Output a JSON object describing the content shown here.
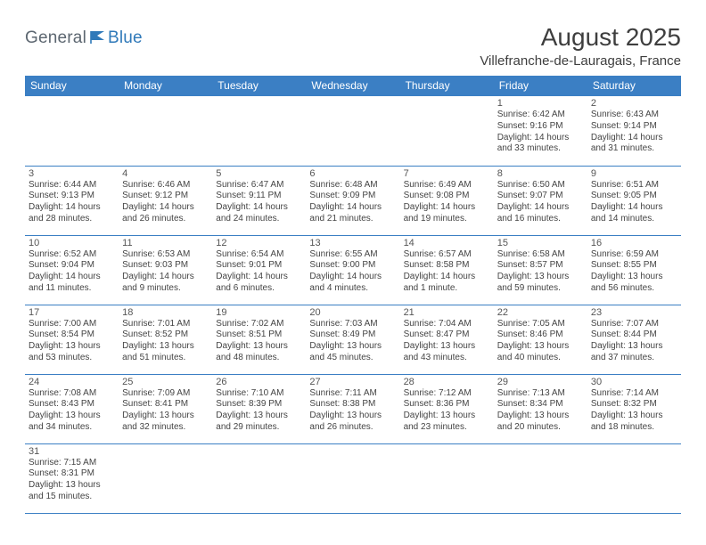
{
  "logo": {
    "general": "General",
    "blue": "Blue"
  },
  "title": {
    "month": "August 2025",
    "location": "Villefranche-de-Lauragais, France"
  },
  "colors": {
    "header_bg": "#3b7fc4",
    "header_fg": "#ffffff",
    "rule": "#3b7fc4",
    "text": "#444444",
    "title": "#3e3e3e",
    "logo_gray": "#5c6670",
    "logo_blue": "#2f79b9"
  },
  "weekdays": [
    "Sunday",
    "Monday",
    "Tuesday",
    "Wednesday",
    "Thursday",
    "Friday",
    "Saturday"
  ],
  "layout": {
    "first_weekday_index": 5,
    "days_in_month": 31,
    "rows": 6
  },
  "days": {
    "1": {
      "sunrise": "6:42 AM",
      "sunset": "9:16 PM",
      "daylight": "14 hours and 33 minutes."
    },
    "2": {
      "sunrise": "6:43 AM",
      "sunset": "9:14 PM",
      "daylight": "14 hours and 31 minutes."
    },
    "3": {
      "sunrise": "6:44 AM",
      "sunset": "9:13 PM",
      "daylight": "14 hours and 28 minutes."
    },
    "4": {
      "sunrise": "6:46 AM",
      "sunset": "9:12 PM",
      "daylight": "14 hours and 26 minutes."
    },
    "5": {
      "sunrise": "6:47 AM",
      "sunset": "9:11 PM",
      "daylight": "14 hours and 24 minutes."
    },
    "6": {
      "sunrise": "6:48 AM",
      "sunset": "9:09 PM",
      "daylight": "14 hours and 21 minutes."
    },
    "7": {
      "sunrise": "6:49 AM",
      "sunset": "9:08 PM",
      "daylight": "14 hours and 19 minutes."
    },
    "8": {
      "sunrise": "6:50 AM",
      "sunset": "9:07 PM",
      "daylight": "14 hours and 16 minutes."
    },
    "9": {
      "sunrise": "6:51 AM",
      "sunset": "9:05 PM",
      "daylight": "14 hours and 14 minutes."
    },
    "10": {
      "sunrise": "6:52 AM",
      "sunset": "9:04 PM",
      "daylight": "14 hours and 11 minutes."
    },
    "11": {
      "sunrise": "6:53 AM",
      "sunset": "9:03 PM",
      "daylight": "14 hours and 9 minutes."
    },
    "12": {
      "sunrise": "6:54 AM",
      "sunset": "9:01 PM",
      "daylight": "14 hours and 6 minutes."
    },
    "13": {
      "sunrise": "6:55 AM",
      "sunset": "9:00 PM",
      "daylight": "14 hours and 4 minutes."
    },
    "14": {
      "sunrise": "6:57 AM",
      "sunset": "8:58 PM",
      "daylight": "14 hours and 1 minute."
    },
    "15": {
      "sunrise": "6:58 AM",
      "sunset": "8:57 PM",
      "daylight": "13 hours and 59 minutes."
    },
    "16": {
      "sunrise": "6:59 AM",
      "sunset": "8:55 PM",
      "daylight": "13 hours and 56 minutes."
    },
    "17": {
      "sunrise": "7:00 AM",
      "sunset": "8:54 PM",
      "daylight": "13 hours and 53 minutes."
    },
    "18": {
      "sunrise": "7:01 AM",
      "sunset": "8:52 PM",
      "daylight": "13 hours and 51 minutes."
    },
    "19": {
      "sunrise": "7:02 AM",
      "sunset": "8:51 PM",
      "daylight": "13 hours and 48 minutes."
    },
    "20": {
      "sunrise": "7:03 AM",
      "sunset": "8:49 PM",
      "daylight": "13 hours and 45 minutes."
    },
    "21": {
      "sunrise": "7:04 AM",
      "sunset": "8:47 PM",
      "daylight": "13 hours and 43 minutes."
    },
    "22": {
      "sunrise": "7:05 AM",
      "sunset": "8:46 PM",
      "daylight": "13 hours and 40 minutes."
    },
    "23": {
      "sunrise": "7:07 AM",
      "sunset": "8:44 PM",
      "daylight": "13 hours and 37 minutes."
    },
    "24": {
      "sunrise": "7:08 AM",
      "sunset": "8:43 PM",
      "daylight": "13 hours and 34 minutes."
    },
    "25": {
      "sunrise": "7:09 AM",
      "sunset": "8:41 PM",
      "daylight": "13 hours and 32 minutes."
    },
    "26": {
      "sunrise": "7:10 AM",
      "sunset": "8:39 PM",
      "daylight": "13 hours and 29 minutes."
    },
    "27": {
      "sunrise": "7:11 AM",
      "sunset": "8:38 PM",
      "daylight": "13 hours and 26 minutes."
    },
    "28": {
      "sunrise": "7:12 AM",
      "sunset": "8:36 PM",
      "daylight": "13 hours and 23 minutes."
    },
    "29": {
      "sunrise": "7:13 AM",
      "sunset": "8:34 PM",
      "daylight": "13 hours and 20 minutes."
    },
    "30": {
      "sunrise": "7:14 AM",
      "sunset": "8:32 PM",
      "daylight": "13 hours and 18 minutes."
    },
    "31": {
      "sunrise": "7:15 AM",
      "sunset": "8:31 PM",
      "daylight": "13 hours and 15 minutes."
    }
  },
  "labels": {
    "sunrise": "Sunrise: ",
    "sunset": "Sunset: ",
    "daylight": "Daylight: "
  }
}
